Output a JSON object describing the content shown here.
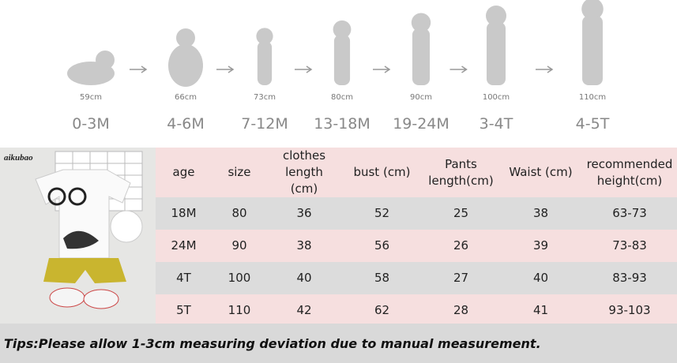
{
  "stages": [
    {
      "height": "59cm",
      "age": "0-3M"
    },
    {
      "height": "66cm",
      "age": "4-6M"
    },
    {
      "height": "73cm",
      "age": "7-12M"
    },
    {
      "height": "80cm",
      "age": "13-18M"
    },
    {
      "height": "90cm",
      "age": "19-24M"
    },
    {
      "height": "100cm",
      "age": "3-4T"
    },
    {
      "height": "110cm",
      "age": "4-5T"
    }
  ],
  "brand": "aikubao",
  "table": {
    "header": [
      "age",
      "size",
      "clothes length (cm)",
      "bust (cm)",
      "Pants length(cm)",
      "Waist (cm)",
      "recommended height(cm)"
    ],
    "rows": [
      [
        "18M",
        "80",
        "36",
        "52",
        "25",
        "38",
        "63-73"
      ],
      [
        "24M",
        "90",
        "38",
        "56",
        "26",
        "39",
        "73-83"
      ],
      [
        "4T",
        "100",
        "40",
        "58",
        "27",
        "40",
        "83-93"
      ],
      [
        "5T",
        "110",
        "42",
        "62",
        "28",
        "41",
        "93-103"
      ]
    ]
  },
  "tips": "Tips:Please allow 1-3cm measuring deviation due to manual measurement."
}
